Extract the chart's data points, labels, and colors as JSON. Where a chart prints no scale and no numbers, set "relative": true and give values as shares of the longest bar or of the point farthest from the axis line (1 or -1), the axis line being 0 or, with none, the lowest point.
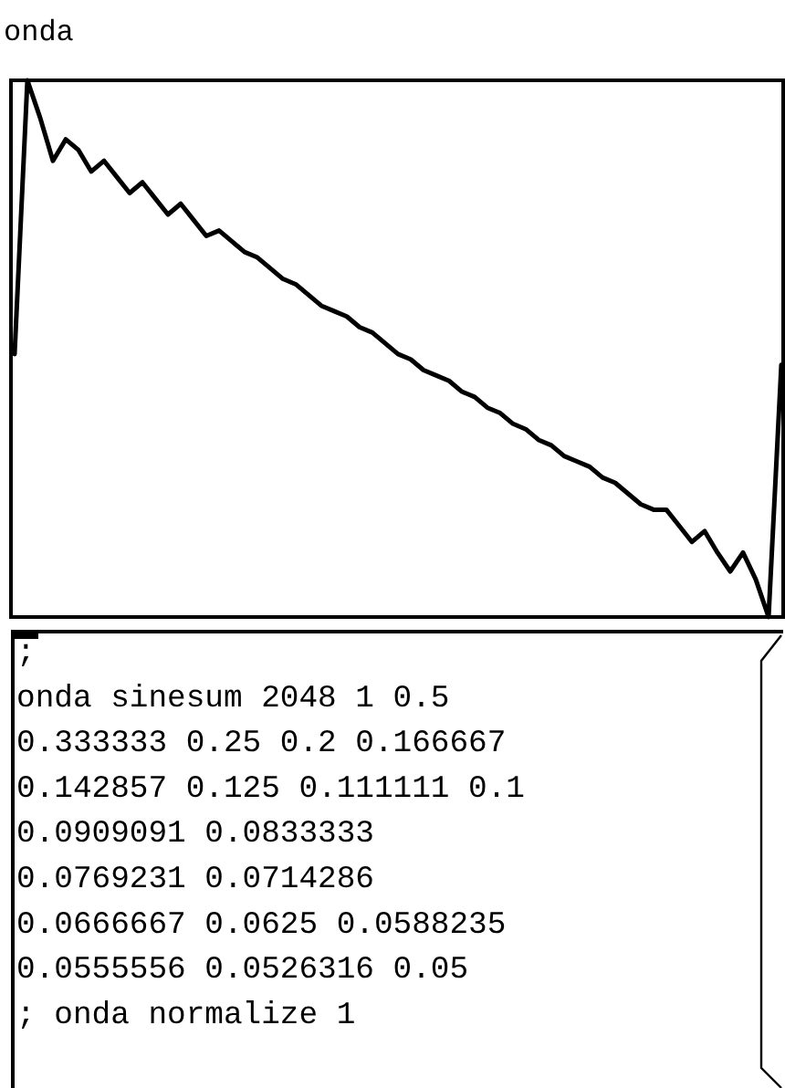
{
  "chart_data": {
    "type": "line",
    "title": "onda",
    "relative": true,
    "line_style": "solid",
    "categories": [
      null,
      null,
      null,
      null,
      null,
      null,
      null,
      null,
      null,
      null,
      null,
      null,
      null,
      null,
      null,
      null,
      null,
      null,
      null,
      null,
      null,
      null,
      null,
      null,
      null,
      null,
      null,
      null,
      null,
      null,
      null,
      null,
      null,
      null,
      null,
      null,
      null,
      null,
      null,
      null,
      null,
      null,
      null,
      null,
      null,
      null,
      null,
      null,
      null,
      null,
      null,
      null,
      null,
      null,
      null,
      null,
      null,
      null,
      null,
      null,
      null
    ],
    "series": [
      {
        "color": "#000000",
        "values": [
          0.49,
          1,
          0.93,
          0.85,
          0.89,
          0.87,
          0.83,
          0.85,
          0.82,
          0.79,
          0.81,
          0.78,
          0.75,
          0.77,
          0.74,
          0.71,
          0.72,
          0.7,
          0.68,
          0.67,
          0.65,
          0.63,
          0.62,
          0.6,
          0.58,
          0.57,
          0.56,
          0.54,
          0.53,
          0.51,
          0.49,
          0.48,
          0.46,
          0.45,
          0.44,
          0.42,
          0.41,
          0.39,
          0.38,
          0.36,
          0.35,
          0.33,
          0.32,
          0.3,
          0.29,
          0.28,
          0.26,
          0.25,
          0.23,
          0.21,
          0.2,
          0.2,
          0.17,
          0.14,
          0.16,
          0.12,
          0.085,
          0.12,
          0.07,
          0,
          0.47
        ]
      }
    ],
    "annotations": [
      ";",
      "onda sinesum 2048 1 0.5",
      "0.333333 0.25 0.2 0.166667",
      "0.142857 0.125 0.111111 0.1",
      "0.0909091 0.0833333",
      "0.0769231 0.0714286",
      "0.0666667 0.0625 0.0588235",
      "0.0555556 0.0526316 0.05",
      "; onda normalize 1"
    ]
  }
}
